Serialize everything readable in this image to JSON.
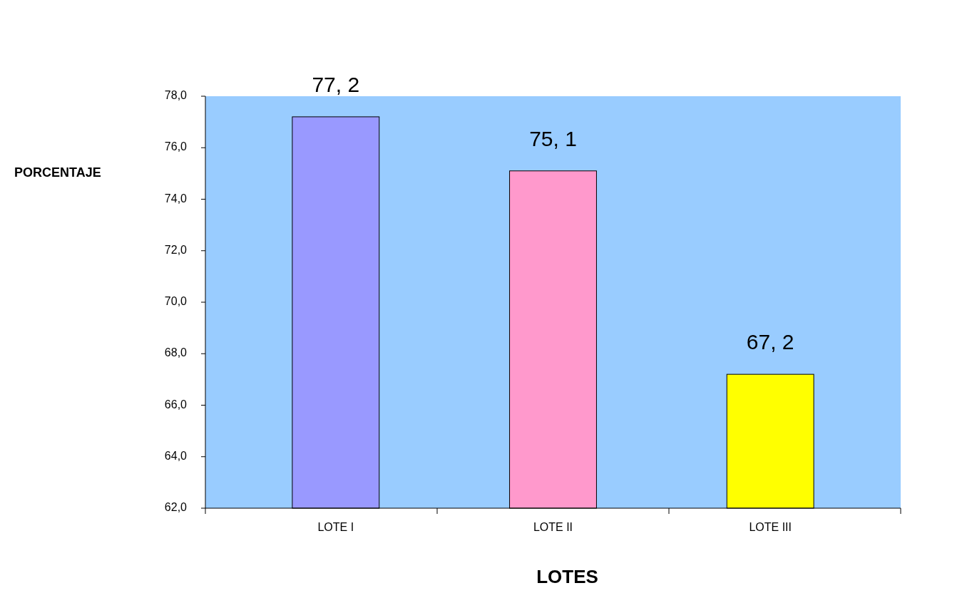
{
  "chart_data": {
    "type": "bar",
    "xlabel": "LOTES",
    "ylabel": "PORCENTAJE",
    "categories": [
      "LOTE I",
      "LOTE II",
      "LOTE III"
    ],
    "values": [
      77.2,
      75.1,
      67.2
    ],
    "colors": [
      "#9999ff",
      "#ff99cc",
      "#ffff00"
    ],
    "value_labels": [
      "77, 2",
      "75, 1",
      "67, 2"
    ],
    "ylim": [
      62,
      78
    ],
    "yticks": [
      {
        "value": 62,
        "label": "62,0"
      },
      {
        "value": 64,
        "label": "64,0"
      },
      {
        "value": 66,
        "label": "66,0"
      },
      {
        "value": 68,
        "label": "68,0"
      },
      {
        "value": 70,
        "label": "70,0"
      },
      {
        "value": 72,
        "label": "72,0"
      },
      {
        "value": 74,
        "label": "74,0"
      },
      {
        "value": 76,
        "label": "76,0"
      },
      {
        "value": 78,
        "label": "78,0"
      }
    ],
    "grid": false
  }
}
